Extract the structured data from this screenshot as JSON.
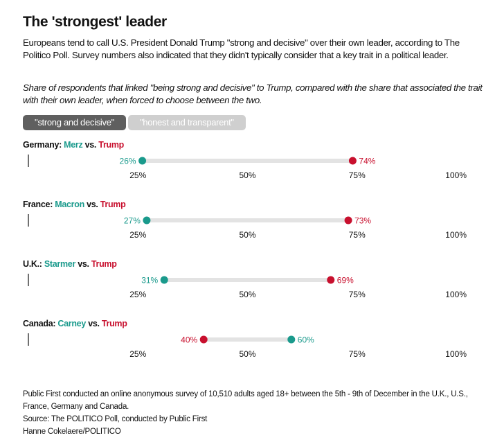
{
  "title": "The 'strongest' leader",
  "description": "Europeans tend to call U.S. President Donald Trump \"strong and decisive\" over their own leader, according to The Politico Poll. Survey numbers also indicated that they didn't typically consider that a key trait in a political leader.",
  "subtitle": "Share of respondents that linked \"being strong and decisive\" to Trump, compared with the share that associated the trait with their own leader, when forced to choose between the two.",
  "tabs": [
    {
      "label": "\"strong and decisive\"",
      "active": true
    },
    {
      "label": "\"honest and transparent\"",
      "active": false
    }
  ],
  "colors": {
    "leader": "#1a9a8c",
    "trump": "#c8102e",
    "track": "#e3e3e3"
  },
  "chart_data": {
    "type": "dumbbell",
    "xlim": [
      0,
      100
    ],
    "ticks": [
      25,
      50,
      75,
      100
    ],
    "tick_labels": [
      "25%",
      "50%",
      "75%",
      "100%"
    ],
    "panels": [
      {
        "country": "Germany:",
        "leader": "Merz",
        "vs": "vs.",
        "trump_label": "Trump",
        "leader_value": 26,
        "trump_value": 74
      },
      {
        "country": "France:",
        "leader": "Macron",
        "vs": "vs.",
        "trump_label": "Trump",
        "leader_value": 27,
        "trump_value": 73
      },
      {
        "country": "U.K.:",
        "leader": "Starmer",
        "vs": "vs.",
        "trump_label": "Trump",
        "leader_value": 31,
        "trump_value": 69
      },
      {
        "country": "Canada:",
        "leader": "Carney",
        "vs": "vs.",
        "trump_label": "Trump",
        "leader_value": 60,
        "trump_value": 40
      }
    ]
  },
  "footer": {
    "method": "Public First conducted an online anonymous survey of 10,510 adults aged 18+ between the 5th - 9th of December in the U.K., U.S., France, Germany and Canada.",
    "source": "Source: The POLITICO Poll, conducted by Public First",
    "credit": "Hanne Cokelaere/POLITICO"
  }
}
